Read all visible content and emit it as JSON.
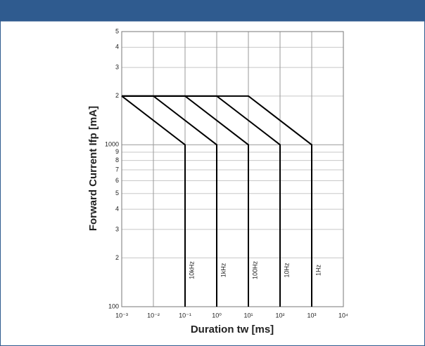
{
  "chart_data": {
    "type": "line",
    "xlabel": "Duration tw [ms]",
    "ylabel": "Forward Current Ifp [mA]",
    "xscale": "log",
    "yscale": "log",
    "grid": true,
    "xlim": [
      0.001,
      10000
    ],
    "ylim": [
      100,
      5000
    ],
    "xticks": [
      {
        "value": 0.001,
        "label": "10⁻³"
      },
      {
        "value": 0.01,
        "label": "10⁻²"
      },
      {
        "value": 0.1,
        "label": "10⁻¹"
      },
      {
        "value": 1,
        "label": "10⁰"
      },
      {
        "value": 10,
        "label": "10¹"
      },
      {
        "value": 100,
        "label": "10²"
      },
      {
        "value": 1000,
        "label": "10³"
      },
      {
        "value": 10000,
        "label": "10⁴"
      }
    ],
    "yticks": [
      100,
      {
        "value": 200,
        "label": "2"
      },
      {
        "value": 300,
        "label": "3"
      },
      {
        "value": 400,
        "label": "4"
      },
      {
        "value": 500,
        "label": "5"
      },
      {
        "value": 600,
        "label": "6"
      },
      {
        "value": 700,
        "label": "7"
      },
      {
        "value": 800,
        "label": "8"
      },
      {
        "value": 900,
        "label": "9"
      },
      1000,
      {
        "value": 2000,
        "label": "2"
      },
      {
        "value": 3000,
        "label": "3"
      },
      {
        "value": 4000,
        "label": "4"
      },
      {
        "value": 5000,
        "label": "5"
      }
    ],
    "series": [
      {
        "name": "10kHz",
        "color": "#000000",
        "x": [
          0.001,
          0.001,
          0.1,
          0.1
        ],
        "values": [
          2000,
          2000,
          1000,
          100
        ]
      },
      {
        "name": "1kHz",
        "color": "#000000",
        "x": [
          0.001,
          0.01,
          1,
          1
        ],
        "values": [
          2000,
          2000,
          1000,
          100
        ]
      },
      {
        "name": "100Hz",
        "color": "#000000",
        "x": [
          0.001,
          0.1,
          10,
          10
        ],
        "values": [
          2000,
          2000,
          1000,
          100
        ]
      },
      {
        "name": "10Hz",
        "color": "#000000",
        "x": [
          0.001,
          1,
          100,
          100
        ],
        "values": [
          2000,
          2000,
          1000,
          100
        ]
      },
      {
        "name": "1Hz",
        "color": "#000000",
        "x": [
          0.001,
          10,
          1000,
          1000
        ],
        "values": [
          2000,
          2000,
          1000,
          100
        ]
      }
    ]
  }
}
